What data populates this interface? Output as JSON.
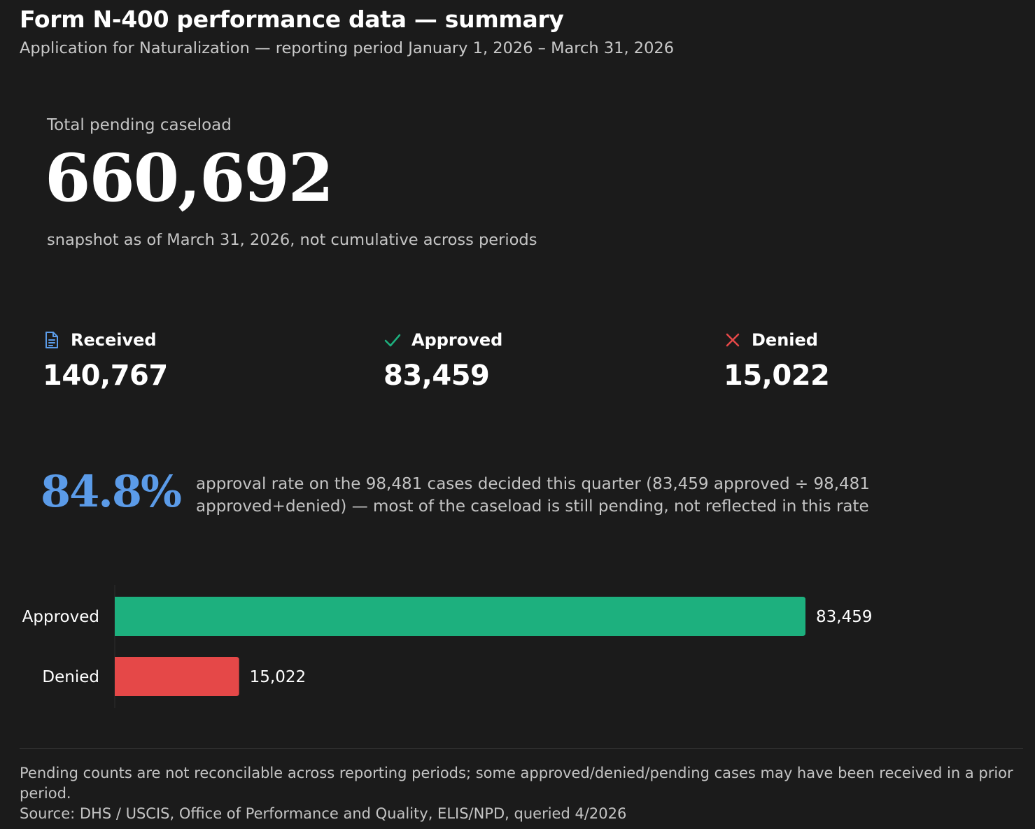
{
  "header": {
    "title": "Form N-400 performance data — summary",
    "subtitle": "Application for Naturalization — reporting period January 1, 2026 – March 31, 2026"
  },
  "hero": {
    "label": "Total pending caseload",
    "value": "660,692",
    "note": "snapshot as of March 31, 2026, not cumulative across periods"
  },
  "stats": {
    "received": {
      "label": "Received",
      "value": "140,767",
      "icon": "document-icon",
      "color": "#5b9be8"
    },
    "approved": {
      "label": "Approved",
      "value": "83,459",
      "icon": "check-icon",
      "color": "#1db07e"
    },
    "denied": {
      "label": "Denied",
      "value": "15,022",
      "icon": "x-icon",
      "color": "#e54848"
    }
  },
  "rate": {
    "value": "84.8%",
    "description": "approval rate on the 98,481 cases decided this quarter (83,459 approved ÷ 98,481 approved+denied) — most of the caseload is still pending, not reflected in this rate"
  },
  "chart_data": {
    "type": "bar",
    "orientation": "horizontal",
    "categories": [
      "Approved",
      "Denied"
    ],
    "values": [
      83459,
      15022
    ],
    "value_labels": [
      "83,459",
      "15,022"
    ],
    "colors": [
      "#1db07e",
      "#e54848"
    ],
    "title": "",
    "xlabel": "",
    "ylabel": "",
    "xlim": [
      0,
      83459
    ],
    "grid": false
  },
  "footer": {
    "note": "Pending counts are not reconcilable across reporting periods; some approved/denied/pending cases may have been received in a prior period.",
    "source": "Source: DHS / USCIS, Office of Performance and Quality, ELIS/NPD, queried 4/2026"
  }
}
